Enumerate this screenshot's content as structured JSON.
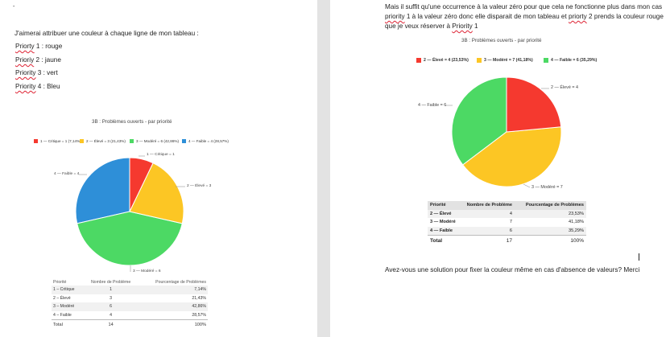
{
  "colors": {
    "red": "#f5392f",
    "yellow": "#fcc624",
    "green": "#4cd964",
    "blue": "#2e8fd8"
  },
  "left": {
    "mark": "-",
    "intro": "J'aimerai attribuer une couleur à chaque ligne de mon tableau :",
    "items": [
      {
        "word": "Priorty",
        "rest": " 1 : rouge"
      },
      {
        "word": "Prioriy",
        "rest": " 2 : jaune"
      },
      {
        "word": "Priority",
        "rest": " 3 : vert"
      },
      {
        "word": "Priority",
        "rest": " 4 :  Bleu"
      }
    ],
    "chart_title": "3B : Problèmes ouverts - par priorité",
    "legend": [
      "1 — Critique = 1 (7,14%)",
      "2 — Élevé = 3 (21,43%)",
      "3 — Modéré = 6 (42,86%)",
      "4 — Faible = 4 (28,57%)"
    ],
    "labels": {
      "critique": "1 — Critique = 1",
      "eleve": "2 — Élevé = 3",
      "modere": "3 — Modéré = 6",
      "faible": "4 — Faible = 4"
    },
    "table": {
      "headers": [
        "Priorité",
        "Nombre de Problème",
        "Pourcentage de Problèmes"
      ],
      "rows": [
        [
          "1 – Critique",
          "1",
          "7,14%"
        ],
        [
          "2 – Élevé",
          "3",
          "21,43%"
        ],
        [
          "3 – Modéré",
          "6",
          "42,86%"
        ],
        [
          "4 – Faible",
          "4",
          "28,57%"
        ]
      ],
      "total": [
        "Total",
        "14",
        "100%"
      ]
    }
  },
  "right": {
    "para1_a": "Mais il suffit qu'une occurrence à la valeur zéro pour que cela ne fonctionne plus dans mon cas",
    "para1_b_word": "priority",
    "para1_b_rest": " 1 à la valeur zéro donc elle disparait de mon tableau et ",
    "para1_b_word2": "priorty",
    "para1_b_rest2": " 2 prends la couleur rouge",
    "para1_c": "que je veux réserver à ",
    "para1_c_word": "Priority",
    "para1_c_rest": " 1",
    "chart_title": "3B : Problèmes ouverts - par priorité",
    "legend": [
      "2 — Élevé = 4 (23,53%)",
      "3 — Modéré = 7 (41,18%)",
      "4 — Faible = 6 (35,29%)"
    ],
    "labels": {
      "eleve": "2 — Élevé = 4",
      "modere": "3 — Modéré = 7",
      "faible": "4 — Faible = 6"
    },
    "table": {
      "headers": [
        "Priorité",
        "Nombre de Problème",
        "Pourcentage de Problèmes"
      ],
      "rows": [
        [
          "2 — Élevé",
          "4",
          "23,53%"
        ],
        [
          "3 — Modéré",
          "7",
          "41,18%"
        ],
        [
          "4 — Faible",
          "6",
          "35,29%"
        ]
      ],
      "total": [
        "Total",
        "17",
        "100%"
      ]
    },
    "question": "Avez-vous une solution pour fixer la couleur même en cas d'absence de valeurs?  Merci"
  },
  "chart_data": [
    {
      "type": "pie",
      "title": "3B : Problèmes ouverts - par priorité",
      "categories": [
        "1 — Critique",
        "2 — Élevé",
        "3 — Modéré",
        "4 — Faible"
      ],
      "values": [
        1,
        3,
        6,
        4
      ],
      "colors": [
        "#f5392f",
        "#fcc624",
        "#4cd964",
        "#2e8fd8"
      ],
      "legend": "top"
    },
    {
      "type": "pie",
      "title": "3B : Problèmes ouverts - par priorité",
      "categories": [
        "2 — Élevé",
        "3 — Modéré",
        "4 — Faible"
      ],
      "values": [
        4,
        7,
        6
      ],
      "colors": [
        "#f5392f",
        "#fcc624",
        "#4cd964"
      ],
      "legend": "top"
    }
  ]
}
